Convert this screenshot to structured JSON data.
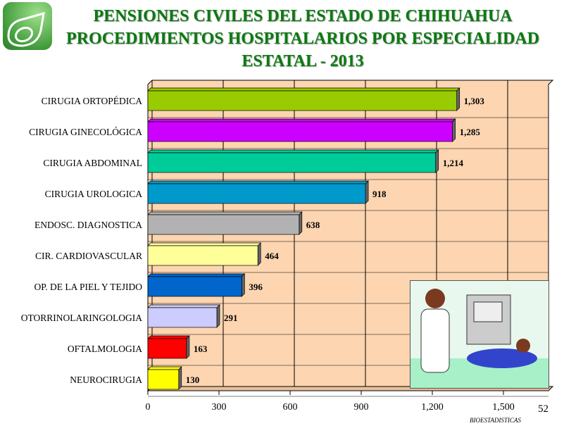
{
  "header": {
    "line1": "PENSIONES  CIVILES  DEL  ESTADO  DE  CHIHUAHUA",
    "line2": "PROCEDIMIENTOS HOSPITALARIOS  POR ESPECIALIDAD",
    "line3": "ESTATAL - 2013"
  },
  "footer": {
    "page": "52",
    "source": "BIOESTADISTICAS"
  },
  "chart_data": {
    "type": "bar",
    "orientation": "horizontal",
    "categories": [
      "CIRUGIA  ORTOPÉDICA",
      "CIRUGIA  GINECOLÓGICA",
      "CIRUGIA  ABDOMINAL",
      "CIRUGIA  UROLOGICA",
      "ENDOSC. DIAGNOSTICA",
      "CIR. CARDIOVASCULAR",
      "OP. DE LA PIEL Y TEJIDO",
      "OTORRINOLARINGOLOGIA",
      "OFTALMOLOGIA",
      "NEUROCIRUGIA"
    ],
    "values": [
      1303,
      1285,
      1214,
      918,
      638,
      464,
      396,
      291,
      163,
      130
    ],
    "value_labels": [
      "1,303",
      "1,285",
      "1,214",
      "918",
      "638",
      "464",
      "396",
      "291",
      "163",
      "130"
    ],
    "colors": [
      "#99cc00",
      "#cc00ff",
      "#00cc99",
      "#0099cc",
      "#b2b2b2",
      "#ffff99",
      "#0066cc",
      "#ccccff",
      "#ff0000",
      "#ffff00"
    ],
    "xticks": [
      0,
      300,
      600,
      900,
      1200,
      1500
    ],
    "xtick_labels": [
      "0",
      "300",
      "600",
      "900",
      "1,200",
      "1,500"
    ],
    "xlim": [
      0,
      1700
    ],
    "grid": true,
    "background": "#fdd5b1"
  }
}
